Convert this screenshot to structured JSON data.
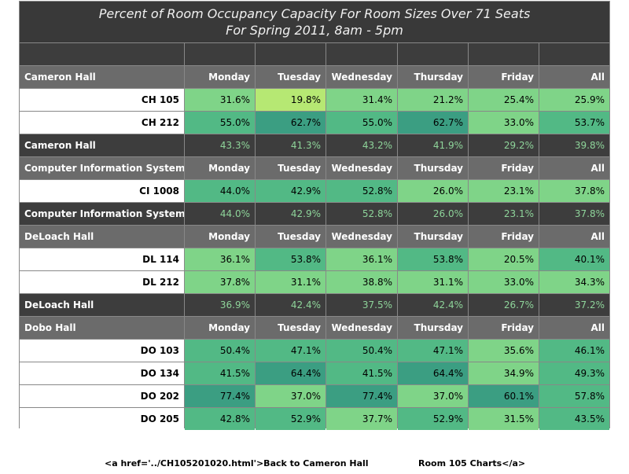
{
  "title": {
    "line1": "Percent of Room Occupancy Capacity For Room Sizes Over 71 Seats",
    "line2": "For Spring 2011, 8am - 5pm"
  },
  "columns": [
    "Monday",
    "Tuesday",
    "Wednesday",
    "Thursday",
    "Friday",
    "All"
  ],
  "groups": [
    {
      "name": "Cameron Hall",
      "rooms": [
        {
          "name": "CH 105",
          "values": [
            "31.6%",
            "19.8%",
            "31.4%",
            "21.2%",
            "25.4%",
            "25.9%"
          ],
          "colors": [
            "#7fd488",
            "#b6e873",
            "#7fd488",
            "#7fd488",
            "#7fd488",
            "#7fd488"
          ]
        },
        {
          "name": "CH 212",
          "values": [
            "55.0%",
            "62.7%",
            "55.0%",
            "62.7%",
            "33.0%",
            "53.7%"
          ],
          "colors": [
            "#52b985",
            "#3b9e82",
            "#52b985",
            "#3b9e82",
            "#7fd488",
            "#52b985"
          ]
        }
      ],
      "summary": [
        "43.3%",
        "41.3%",
        "43.2%",
        "41.9%",
        "29.2%",
        "39.8%"
      ]
    },
    {
      "name": "Computer Information Systems",
      "rooms": [
        {
          "name": "CI 1008",
          "values": [
            "44.0%",
            "42.9%",
            "52.8%",
            "26.0%",
            "23.1%",
            "37.8%"
          ],
          "colors": [
            "#52b985",
            "#52b985",
            "#52b985",
            "#7fd488",
            "#7fd488",
            "#7fd488"
          ]
        }
      ],
      "summary": [
        "44.0%",
        "42.9%",
        "52.8%",
        "26.0%",
        "23.1%",
        "37.8%"
      ]
    },
    {
      "name": "DeLoach Hall",
      "rooms": [
        {
          "name": "DL 114",
          "values": [
            "36.1%",
            "53.8%",
            "36.1%",
            "53.8%",
            "20.5%",
            "40.1%"
          ],
          "colors": [
            "#7fd488",
            "#52b985",
            "#7fd488",
            "#52b985",
            "#7fd488",
            "#52b985"
          ]
        },
        {
          "name": "DL 212",
          "values": [
            "37.8%",
            "31.1%",
            "38.8%",
            "31.1%",
            "33.0%",
            "34.3%"
          ],
          "colors": [
            "#7fd488",
            "#7fd488",
            "#7fd488",
            "#7fd488",
            "#7fd488",
            "#7fd488"
          ]
        }
      ],
      "summary": [
        "36.9%",
        "42.4%",
        "37.5%",
        "42.4%",
        "26.7%",
        "37.2%"
      ]
    },
    {
      "name": "Dobo Hall",
      "rooms": [
        {
          "name": "DO 103",
          "values": [
            "50.4%",
            "47.1%",
            "50.4%",
            "47.1%",
            "35.6%",
            "46.1%"
          ],
          "colors": [
            "#52b985",
            "#52b985",
            "#52b985",
            "#52b985",
            "#7fd488",
            "#52b985"
          ]
        },
        {
          "name": "DO 134",
          "values": [
            "41.5%",
            "64.4%",
            "41.5%",
            "64.4%",
            "34.9%",
            "49.3%"
          ],
          "colors": [
            "#52b985",
            "#3b9e82",
            "#52b985",
            "#3b9e82",
            "#7fd488",
            "#52b985"
          ]
        },
        {
          "name": "DO 202",
          "values": [
            "77.4%",
            "37.0%",
            "77.4%",
            "37.0%",
            "60.1%",
            "57.8%"
          ],
          "colors": [
            "#3b9e82",
            "#7fd488",
            "#3b9e82",
            "#7fd488",
            "#3b9e82",
            "#52b985"
          ]
        },
        {
          "name": "DO 205",
          "values": [
            "42.8%",
            "52.9%",
            "37.7%",
            "52.9%",
            "31.5%",
            "43.5%"
          ],
          "colors": [
            "#52b985",
            "#52b985",
            "#7fd488",
            "#52b985",
            "#7fd488",
            "#52b985"
          ]
        }
      ]
    }
  ],
  "footer": {
    "left": "<a href='../CH105201020.html'>Back to Cameron Hall",
    "right": "Room 105 Charts</a>"
  }
}
